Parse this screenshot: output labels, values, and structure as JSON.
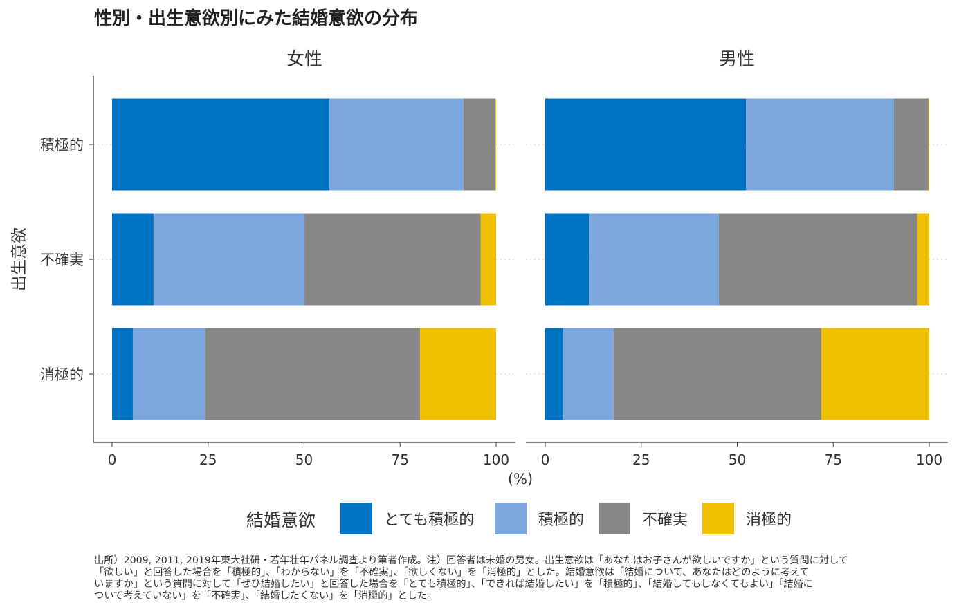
{
  "chart_data": {
    "type": "bar",
    "orientation": "horizontal",
    "stacked": true,
    "title": "性別・出生意欲別にみた結婚意欲の分布",
    "panels": [
      "女性",
      "男性"
    ],
    "categories": [
      "積極的",
      "不確実",
      "消極的"
    ],
    "ylabel": "出生意欲",
    "xlabel": "(%)",
    "xlim": [
      0,
      100
    ],
    "xticks": [
      0,
      25,
      50,
      75,
      100
    ],
    "legend": {
      "title": "結婚意欲",
      "placement": "bottom"
    },
    "series": [
      {
        "name": "とても積極的",
        "color": "#0072C2",
        "values": {
          "女性": [
            56.6,
            10.8,
            5.4
          ],
          "男性": [
            52.3,
            11.4,
            4.7
          ]
        }
      },
      {
        "name": "積極的",
        "color": "#7BA7DC",
        "values": {
          "女性": [
            34.9,
            39.3,
            18.9
          ],
          "男性": [
            38.5,
            33.8,
            13.1
          ]
        }
      },
      {
        "name": "不確実",
        "color": "#878787",
        "values": {
          "女性": [
            8.3,
            45.9,
            55.9
          ],
          "男性": [
            9.0,
            51.7,
            54.1
          ]
        }
      },
      {
        "name": "消極的",
        "color": "#EFC000",
        "values": {
          "女性": [
            0.2,
            4.0,
            19.8
          ],
          "男性": [
            0.2,
            3.1,
            28.1
          ]
        }
      }
    ],
    "grid": "dotted horizontal at categories"
  },
  "caption": [
    "出所）2009, 2011, 2019年東大社研・若年壮年パネル調査より筆者作成。注）回答者は未婚の男女。出生意欲は「あなたはお子さんが欲しいですか」という質問に対して",
    "「欲しい」と回答した場合を「積極的」、「わからない」を「不確実」、「欲しくない」を「消極的」とした。結婚意欲は「結婚について、あなたはどのように考えて",
    "いますか」という質問に対して「ぜひ結婚したい」と回答した場合を「とても積極的」、「できれば結婚したい」を「積極的」、「結婚してもしなくてもよい」「結婚に",
    "ついて考えていない」を「不確実」、「結婚したくない」を「消極的」とした。"
  ]
}
